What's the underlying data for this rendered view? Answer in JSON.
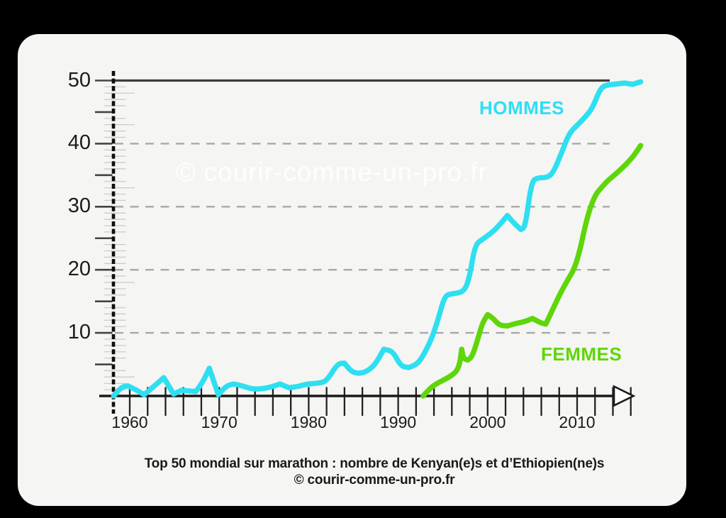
{
  "window": {
    "background": "#000000",
    "panel_background": "#f5f5f3"
  },
  "watermark": {
    "text": "© courir-comme-un-pro.fr",
    "color": "#ffffff"
  },
  "labels": {
    "hommes": "HOMMES",
    "femmes": "FEMMES"
  },
  "caption": {
    "line1": "Top 50 mondial sur marathon : nombre de Kenyan(e)s et d’Ethiopien(ne)s",
    "line2": "© courir-comme-un-pro.fr"
  },
  "chart_data": {
    "type": "line",
    "title": "Top 50 mondial sur marathon : nombre de Kenyan(e)s et d'Ethiopien(ne)s",
    "source": "© courir-comme-un-pro.fr",
    "xlabel": "",
    "ylabel": "",
    "x_range": [
      1958,
      2017
    ],
    "ylim": [
      0,
      50
    ],
    "grid": "horizontal dashed at 10,20,30,40; solid line at 50",
    "legend_position": "inline labels near curves",
    "x_tick_years": [
      1960,
      1970,
      1980,
      1990,
      2000,
      2010
    ],
    "x_tick_labels": [
      "1960",
      "1970",
      "1980",
      "1990",
      "2000",
      "2010"
    ],
    "y_tick_values": [
      50,
      40,
      30,
      20,
      10
    ],
    "y_tick_labels": [
      "50",
      "40",
      "30",
      "20",
      "10"
    ],
    "colors": {
      "hommes": "#2edff1",
      "femmes": "#5ed608",
      "axis": "#1a1a1a",
      "grid": "#a8a8a8"
    },
    "series": [
      {
        "name": "HOMMES",
        "color": "#2edff1",
        "points": [
          [
            1958.2,
            0
          ],
          [
            1959,
            1.4
          ],
          [
            1959.8,
            1.6
          ],
          [
            1960.8,
            0.9
          ],
          [
            1961.6,
            0.2
          ],
          [
            1962.6,
            1.4
          ],
          [
            1963.8,
            2.9
          ],
          [
            1964.9,
            0.3
          ],
          [
            1965.8,
            0.9
          ],
          [
            1966.6,
            0.8
          ],
          [
            1967.4,
            0.7
          ],
          [
            1968.2,
            2.3
          ],
          [
            1968.9,
            4.4
          ],
          [
            1969.9,
            0.2
          ],
          [
            1970.8,
            1.6
          ],
          [
            1971.6,
            1.9
          ],
          [
            1972.6,
            1.6
          ],
          [
            1973.6,
            1.1
          ],
          [
            1974.8,
            1.1
          ],
          [
            1976,
            1.5
          ],
          [
            1976.8,
            1.9
          ],
          [
            1977.8,
            1.3
          ],
          [
            1978.8,
            1.5
          ],
          [
            1979.8,
            1.9
          ],
          [
            1981,
            2.0
          ],
          [
            1982,
            2.3
          ],
          [
            1983.2,
            5.1
          ],
          [
            1984,
            5.2
          ],
          [
            1984.8,
            3.8
          ],
          [
            1985.6,
            3.6
          ],
          [
            1986.4,
            3.8
          ],
          [
            1987.4,
            4.9
          ],
          [
            1988.4,
            7.4
          ],
          [
            1989.4,
            7.1
          ],
          [
            1990.3,
            4.7
          ],
          [
            1991.2,
            4.5
          ],
          [
            1992.2,
            5.1
          ],
          [
            1993,
            6.9
          ],
          [
            1993.8,
            9.3
          ],
          [
            1994.5,
            12.3
          ],
          [
            1995.2,
            15.9
          ],
          [
            1996,
            16.2
          ],
          [
            1997.4,
            16.5
          ],
          [
            1998,
            19
          ],
          [
            1998.6,
            24
          ],
          [
            1999.5,
            24.9
          ],
          [
            2000.3,
            25.7
          ],
          [
            2001,
            26.6
          ],
          [
            2001.8,
            27.9
          ],
          [
            2002.2,
            28.6
          ],
          [
            2003,
            27.3
          ],
          [
            2003.7,
            26.4
          ],
          [
            2004.2,
            26.7
          ],
          [
            2004.9,
            34
          ],
          [
            2005.6,
            34.6
          ],
          [
            2006.6,
            34.6
          ],
          [
            2007.3,
            35.3
          ],
          [
            2008.2,
            38.3
          ],
          [
            2009.1,
            41.6
          ],
          [
            2010,
            42.9
          ],
          [
            2010.9,
            44.2
          ],
          [
            2011.7,
            45.6
          ],
          [
            2012.5,
            48.4
          ],
          [
            2013,
            49.2
          ],
          [
            2014,
            49.4
          ],
          [
            2015.3,
            49.6
          ],
          [
            2016.2,
            49.4
          ],
          [
            2017.1,
            49.8
          ]
        ]
      },
      {
        "name": "FEMMES",
        "color": "#5ed608",
        "points": [
          [
            1992.8,
            0
          ],
          [
            1993.6,
            1.3
          ],
          [
            1994.6,
            2.2
          ],
          [
            1995.6,
            2.9
          ],
          [
            1996.5,
            3.8
          ],
          [
            1996.9,
            5.2
          ],
          [
            1997.1,
            7.4
          ],
          [
            1997.3,
            5.9
          ],
          [
            1997.8,
            5.7
          ],
          [
            1998.3,
            6.3
          ],
          [
            1998.9,
            9
          ],
          [
            1999.4,
            11.5
          ],
          [
            2000,
            12.9
          ],
          [
            2000.7,
            12.2
          ],
          [
            2001.3,
            11.2
          ],
          [
            2002.2,
            11.1
          ],
          [
            2003.2,
            11.5
          ],
          [
            2004.2,
            11.8
          ],
          [
            2005,
            12.3
          ],
          [
            2005.9,
            11.6
          ],
          [
            2006.5,
            11.4
          ],
          [
            2007.4,
            14.1
          ],
          [
            2008.2,
            16.5
          ],
          [
            2009,
            18.5
          ],
          [
            2009.7,
            20.2
          ],
          [
            2010.3,
            23
          ],
          [
            2010.9,
            27
          ],
          [
            2011.5,
            30
          ],
          [
            2012.1,
            32
          ],
          [
            2012.7,
            33
          ],
          [
            2013.4,
            34.1
          ],
          [
            2014,
            34.8
          ],
          [
            2014.8,
            35.8
          ],
          [
            2015.6,
            36.9
          ],
          [
            2016.4,
            38.2
          ],
          [
            2017.1,
            39.7
          ]
        ]
      }
    ]
  }
}
